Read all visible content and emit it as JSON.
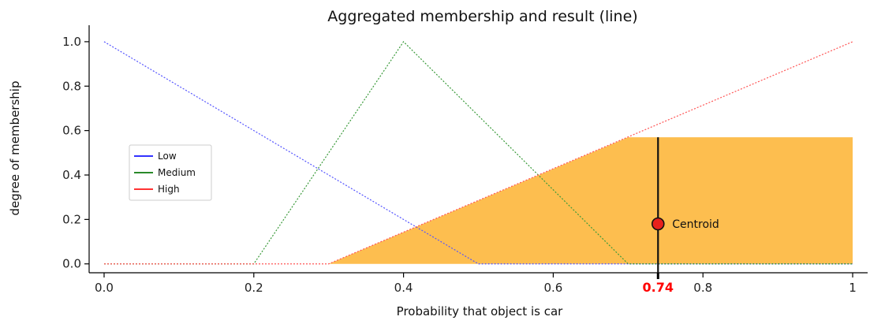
{
  "chart_data": {
    "type": "line",
    "title": "Aggregated membership and result (line)",
    "xlabel": "Probability that object is car",
    "ylabel": "degree of membership",
    "xlim": [
      -0.02,
      1.02
    ],
    "ylim": [
      -0.04,
      1.06
    ],
    "xticks": [
      {
        "value": 0.0,
        "label": "0.0"
      },
      {
        "value": 0.2,
        "label": "0.2"
      },
      {
        "value": 0.4,
        "label": "0.4"
      },
      {
        "value": 0.6,
        "label": "0.6"
      },
      {
        "value": 0.8,
        "label": "0.8"
      },
      {
        "value": 1.0,
        "label": "1"
      }
    ],
    "yticks": [
      {
        "value": 0.0,
        "label": "0.0"
      },
      {
        "value": 0.2,
        "label": "0.2"
      },
      {
        "value": 0.4,
        "label": "0.4"
      },
      {
        "value": 0.6,
        "label": "0.6"
      },
      {
        "value": 0.8,
        "label": "0.8"
      },
      {
        "value": 1.0,
        "label": "1.0"
      }
    ],
    "series": [
      {
        "name": "Low",
        "color": "#5555ff",
        "style": "dotted",
        "points": [
          [
            0.0,
            1.0
          ],
          [
            0.5,
            0.0
          ],
          [
            1.0,
            0.0
          ]
        ]
      },
      {
        "name": "Medium",
        "color": "#3a9a3a",
        "style": "dotted",
        "points": [
          [
            0.0,
            0.0
          ],
          [
            0.2,
            0.0
          ],
          [
            0.4,
            1.0
          ],
          [
            0.7,
            0.0
          ],
          [
            1.0,
            0.0
          ]
        ]
      },
      {
        "name": "High",
        "color": "#ff5555",
        "style": "dotted",
        "points": [
          [
            0.0,
            0.0
          ],
          [
            0.3,
            0.0
          ],
          [
            1.0,
            1.0
          ]
        ]
      }
    ],
    "aggregated": {
      "color": "#fdbe4f",
      "points": [
        [
          0.3,
          0.0
        ],
        [
          0.7,
          0.57
        ],
        [
          1.0,
          0.57
        ],
        [
          1.0,
          0.0
        ]
      ]
    },
    "centroid": {
      "x": 0.74,
      "y": 0.18,
      "line_top": 0.57,
      "label": "Centroid",
      "tick_label": "0.74",
      "tick_color": "#ff0000",
      "marker_color": "#e8201c"
    },
    "legend": {
      "position": "center-left",
      "entries": [
        {
          "name": "Low",
          "color": "#3333ff"
        },
        {
          "name": "Medium",
          "color": "#2a8a2a"
        },
        {
          "name": "High",
          "color": "#ff3333"
        }
      ]
    },
    "grid": false
  }
}
